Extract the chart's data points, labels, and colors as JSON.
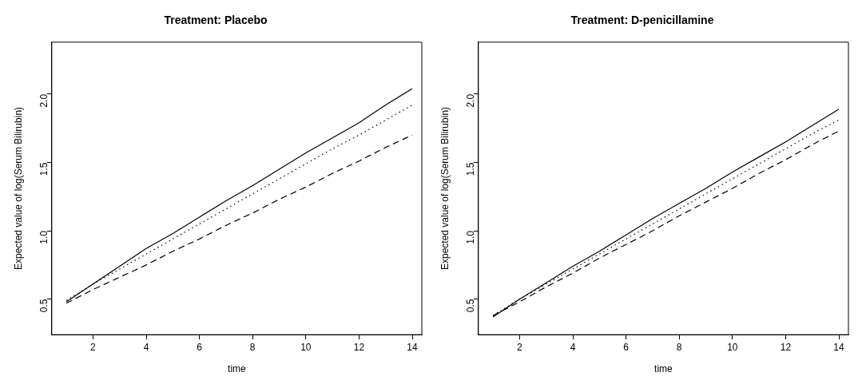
{
  "chart_data": [
    {
      "type": "line",
      "title": "Treatment: Placebo",
      "xlabel": "time",
      "ylabel": "Expected value of log(Serum Bilirubin)",
      "x": [
        1,
        2,
        3,
        4,
        5,
        6,
        7,
        8,
        9,
        10,
        11,
        12,
        13,
        14
      ],
      "series": [
        {
          "color": "#000000",
          "line_style": "solid",
          "values": [
            0.48,
            0.61,
            0.74,
            0.87,
            0.98,
            1.1,
            1.22,
            1.33,
            1.45,
            1.57,
            1.68,
            1.79,
            1.92,
            2.04
          ]
        },
        {
          "color": "#000000",
          "line_style": "dotted",
          "values": [
            0.49,
            0.61,
            0.72,
            0.83,
            0.94,
            1.05,
            1.16,
            1.27,
            1.38,
            1.49,
            1.6,
            1.7,
            1.81,
            1.92
          ]
        },
        {
          "color": "#000000",
          "line_style": "dashed",
          "values": [
            0.47,
            0.57,
            0.66,
            0.75,
            0.85,
            0.94,
            1.04,
            1.13,
            1.23,
            1.32,
            1.42,
            1.51,
            1.61,
            1.7
          ]
        }
      ],
      "xlim": [
        0.45,
        14.36
      ],
      "ylim": [
        0.24,
        2.38
      ],
      "xticks": [
        2,
        4,
        6,
        8,
        10,
        12,
        14
      ],
      "yticks": [
        {
          "value": 0.5,
          "label": "0.5"
        },
        {
          "value": 1,
          "label": "1.0"
        },
        {
          "value": 1.5,
          "label": "1.5"
        },
        {
          "value": 2,
          "label": "2.0"
        }
      ]
    },
    {
      "type": "line",
      "title": "Treatment: D-penicillamine",
      "xlabel": "time",
      "ylabel": "Expected value of log(Serum Bilirubin)",
      "x": [
        1,
        2,
        3,
        4,
        5,
        6,
        7,
        8,
        9,
        10,
        11,
        12,
        13,
        14
      ],
      "series": [
        {
          "color": "#000000",
          "line_style": "solid",
          "values": [
            0.37,
            0.5,
            0.62,
            0.74,
            0.85,
            0.97,
            1.09,
            1.2,
            1.31,
            1.43,
            1.54,
            1.65,
            1.77,
            1.89
          ]
        },
        {
          "color": "#000000",
          "line_style": "dotted",
          "values": [
            0.38,
            0.5,
            0.61,
            0.72,
            0.83,
            0.94,
            1.05,
            1.16,
            1.27,
            1.38,
            1.49,
            1.6,
            1.71,
            1.81
          ]
        },
        {
          "color": "#000000",
          "line_style": "dashed",
          "values": [
            0.38,
            0.48,
            0.59,
            0.69,
            0.8,
            0.9,
            1.0,
            1.11,
            1.21,
            1.31,
            1.42,
            1.52,
            1.63,
            1.73
          ]
        }
      ],
      "xlim": [
        0.45,
        14.36
      ],
      "ylim": [
        0.24,
        2.38
      ],
      "xticks": [
        2,
        4,
        6,
        8,
        10,
        12,
        14
      ],
      "yticks": [
        {
          "value": 0.5,
          "label": "0.5"
        },
        {
          "value": 1,
          "label": "1.0"
        },
        {
          "value": 1.5,
          "label": "1.5"
        },
        {
          "value": 2,
          "label": "2.0"
        }
      ]
    }
  ]
}
